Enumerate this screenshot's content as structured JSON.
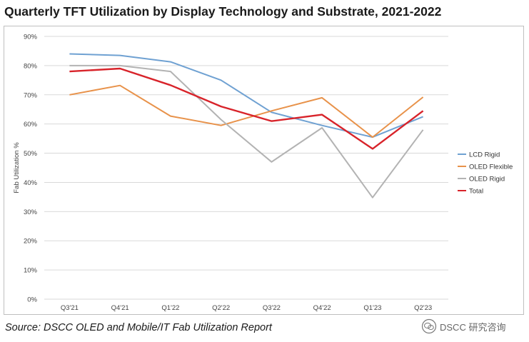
{
  "header": {
    "title": "Quarterly TFT Utilization by Display Technology and Substrate, 2021-2022"
  },
  "footer": {
    "source": "Source: DSCC OLED and Mobile/IT Fab Utilization Report",
    "watermark": "DSCC 研究咨询"
  },
  "colors": {
    "lcd_rigid": "#6fa1d2",
    "oled_flexible": "#e8924a",
    "oled_rigid": "#b3b3b3",
    "total": "#d8232a",
    "grid": "#d9d9d9",
    "axis_text": "#444444"
  },
  "chart_data": {
    "type": "line",
    "title": "Quarterly TFT Utilization by Display Technology and Substrate, 2021-2022",
    "xlabel": "",
    "ylabel": "Fab Utilization %",
    "categories": [
      "Q3'21",
      "Q4'21",
      "Q1'22",
      "Q2'22",
      "Q3'22",
      "Q4'22",
      "Q1'23",
      "Q2'23"
    ],
    "y_ticks": [
      "0%",
      "10%",
      "20%",
      "30%",
      "40%",
      "50%",
      "60%",
      "70%",
      "80%",
      "90%"
    ],
    "ylim": [
      0,
      90
    ],
    "grid": true,
    "legend_position": "right",
    "series": [
      {
        "name": "LCD Rigid",
        "color": "#6fa1d2",
        "values": [
          84,
          83.5,
          81.3,
          75,
          64,
          59.5,
          55.5,
          62.5
        ]
      },
      {
        "name": "OLED Flexible",
        "color": "#e8924a",
        "values": [
          70,
          73.2,
          62.7,
          59.5,
          64.5,
          69,
          55.5,
          69.2
        ]
      },
      {
        "name": "OLED Rigid",
        "color": "#b3b3b3",
        "values": [
          80,
          80,
          78,
          61.5,
          47,
          58.7,
          34.8,
          58
        ]
      },
      {
        "name": "Total",
        "color": "#d8232a",
        "values": [
          78,
          79,
          73.3,
          66,
          61,
          63.2,
          51.5,
          64.5
        ]
      }
    ]
  }
}
